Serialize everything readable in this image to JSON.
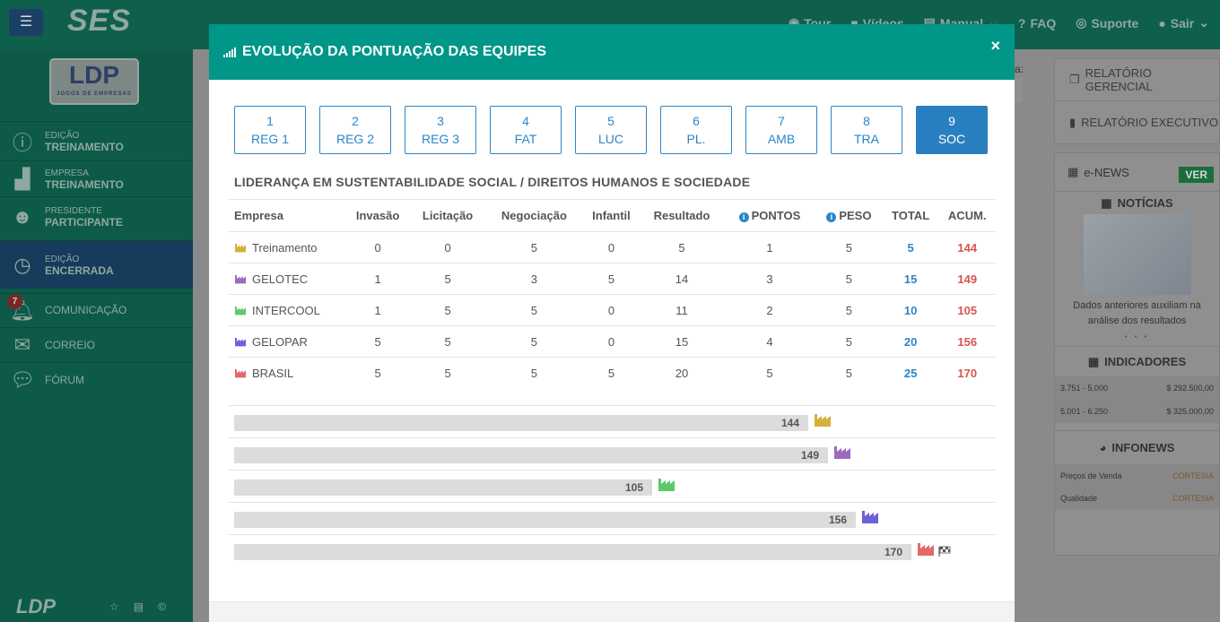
{
  "app": {
    "logo": "SES",
    "menu_icon": "hamburger-icon",
    "nav": [
      "Tour",
      "Vídeos",
      "Manual",
      "FAQ",
      "Suporte",
      "Sair"
    ]
  },
  "sidebar": {
    "brand": "LDP",
    "brand_sub": "JOGOS DE EMPRESAS",
    "items": [
      {
        "top": "EDIÇÃO",
        "bottom": "TREINAMENTO",
        "icon": "info-icon"
      },
      {
        "top": "EMPRESA",
        "bottom": "TREINAMENTO",
        "icon": "factory-icon"
      },
      {
        "top": "PRESIDENTE",
        "bottom": "PARTICIPANTE",
        "icon": "avatar-icon"
      },
      {
        "top": "EDIÇÃO",
        "bottom": "ENCERRADA",
        "icon": "clock-icon"
      },
      {
        "label": "COMUNICAÇÃO",
        "badge": "7",
        "icon": "bell-icon"
      },
      {
        "label": "CORREIO",
        "icon": "envelope-icon"
      },
      {
        "label": "FÓRUM",
        "icon": "chat-icon"
      }
    ],
    "footer_logo": "LDP"
  },
  "right_panel": {
    "report_gerencial": "RELATÓRIO GERENCIAL",
    "report_executivo": "RELATÓRIO EXECUTIVO",
    "enews": "e-NEWS",
    "ver": "VER",
    "noticias": "NOTÍCIAS",
    "news_caption": "Dados anteriores auxiliam na análise dos resultados",
    "indicadores": "INDICADORES",
    "ind_rows": [
      {
        "range": "3.751 - 5.000",
        "value": "$ 292.500,00"
      },
      {
        "range": "5.001 - 6.250",
        "value": "$ 325.000,00"
      }
    ],
    "infonews": "INFONEWS",
    "info_rows": [
      {
        "label": "Preços de Venda",
        "value": "CORTESIA"
      },
      {
        "label": "Qualidade",
        "value": "CORTESIA"
      }
    ],
    "partial_label": "a:"
  },
  "modal": {
    "title": "EVOLUÇÃO DA PONTUAÇÃO DAS EQUIPES",
    "close": "×",
    "tabs": [
      {
        "num": "1",
        "label": "REG 1",
        "active": false
      },
      {
        "num": "2",
        "label": "REG 2",
        "active": false
      },
      {
        "num": "3",
        "label": "REG 3",
        "active": false
      },
      {
        "num": "4",
        "label": "FAT",
        "active": false
      },
      {
        "num": "5",
        "label": "LUC",
        "active": false
      },
      {
        "num": "6",
        "label": "PL.",
        "active": false
      },
      {
        "num": "7",
        "label": "AMB",
        "active": false
      },
      {
        "num": "8",
        "label": "TRA",
        "active": false
      },
      {
        "num": "9",
        "label": "SOC",
        "active": true
      }
    ],
    "section_title": "LIDERANÇA EM SUSTENTABILIDADE SOCIAL / DIREITOS HUMANOS E SOCIEDADE",
    "columns": [
      "Empresa",
      "Invasão",
      "Licitação",
      "Negociação",
      "Infantil",
      "Resultado",
      "PONTOS",
      "PESO",
      "TOTAL",
      "ACUM."
    ],
    "rows": [
      {
        "empresa": "Treinamento",
        "color": "#d4b13a",
        "invasao": "0",
        "licitacao": "0",
        "negociacao": "5",
        "infantil": "0",
        "resultado": "5",
        "pontos": "1",
        "peso": "5",
        "total": "5",
        "acum": "144"
      },
      {
        "empresa": "GELOTEC",
        "color": "#9b6bbf",
        "invasao": "1",
        "licitacao": "5",
        "negociacao": "3",
        "infantil": "5",
        "resultado": "14",
        "pontos": "3",
        "peso": "5",
        "total": "15",
        "acum": "149"
      },
      {
        "empresa": "INTERCOOL",
        "color": "#5ec86a",
        "invasao": "1",
        "licitacao": "5",
        "negociacao": "5",
        "infantil": "0",
        "resultado": "11",
        "pontos": "2",
        "peso": "5",
        "total": "10",
        "acum": "105"
      },
      {
        "empresa": "GELOPAR",
        "color": "#6a63d8",
        "invasao": "5",
        "licitacao": "5",
        "negociacao": "5",
        "infantil": "0",
        "resultado": "15",
        "pontos": "4",
        "peso": "5",
        "total": "20",
        "acum": "156"
      },
      {
        "empresa": "BRASIL",
        "color": "#e06a6a",
        "invasao": "5",
        "licitacao": "5",
        "negociacao": "5",
        "infantil": "5",
        "resultado": "20",
        "pontos": "5",
        "peso": "5",
        "total": "25",
        "acum": "170"
      }
    ],
    "bars": [
      {
        "value": 144,
        "label": "144",
        "color": "#d4b13a",
        "leader": false
      },
      {
        "value": 149,
        "label": "149",
        "color": "#9b6bbf",
        "leader": false
      },
      {
        "value": 105,
        "label": "105",
        "color": "#5ec86a",
        "leader": false
      },
      {
        "value": 156,
        "label": "156",
        "color": "#6a63d8",
        "leader": false
      },
      {
        "value": 170,
        "label": "170",
        "color": "#e06a6a",
        "leader": true
      }
    ],
    "bar_max": 170
  }
}
